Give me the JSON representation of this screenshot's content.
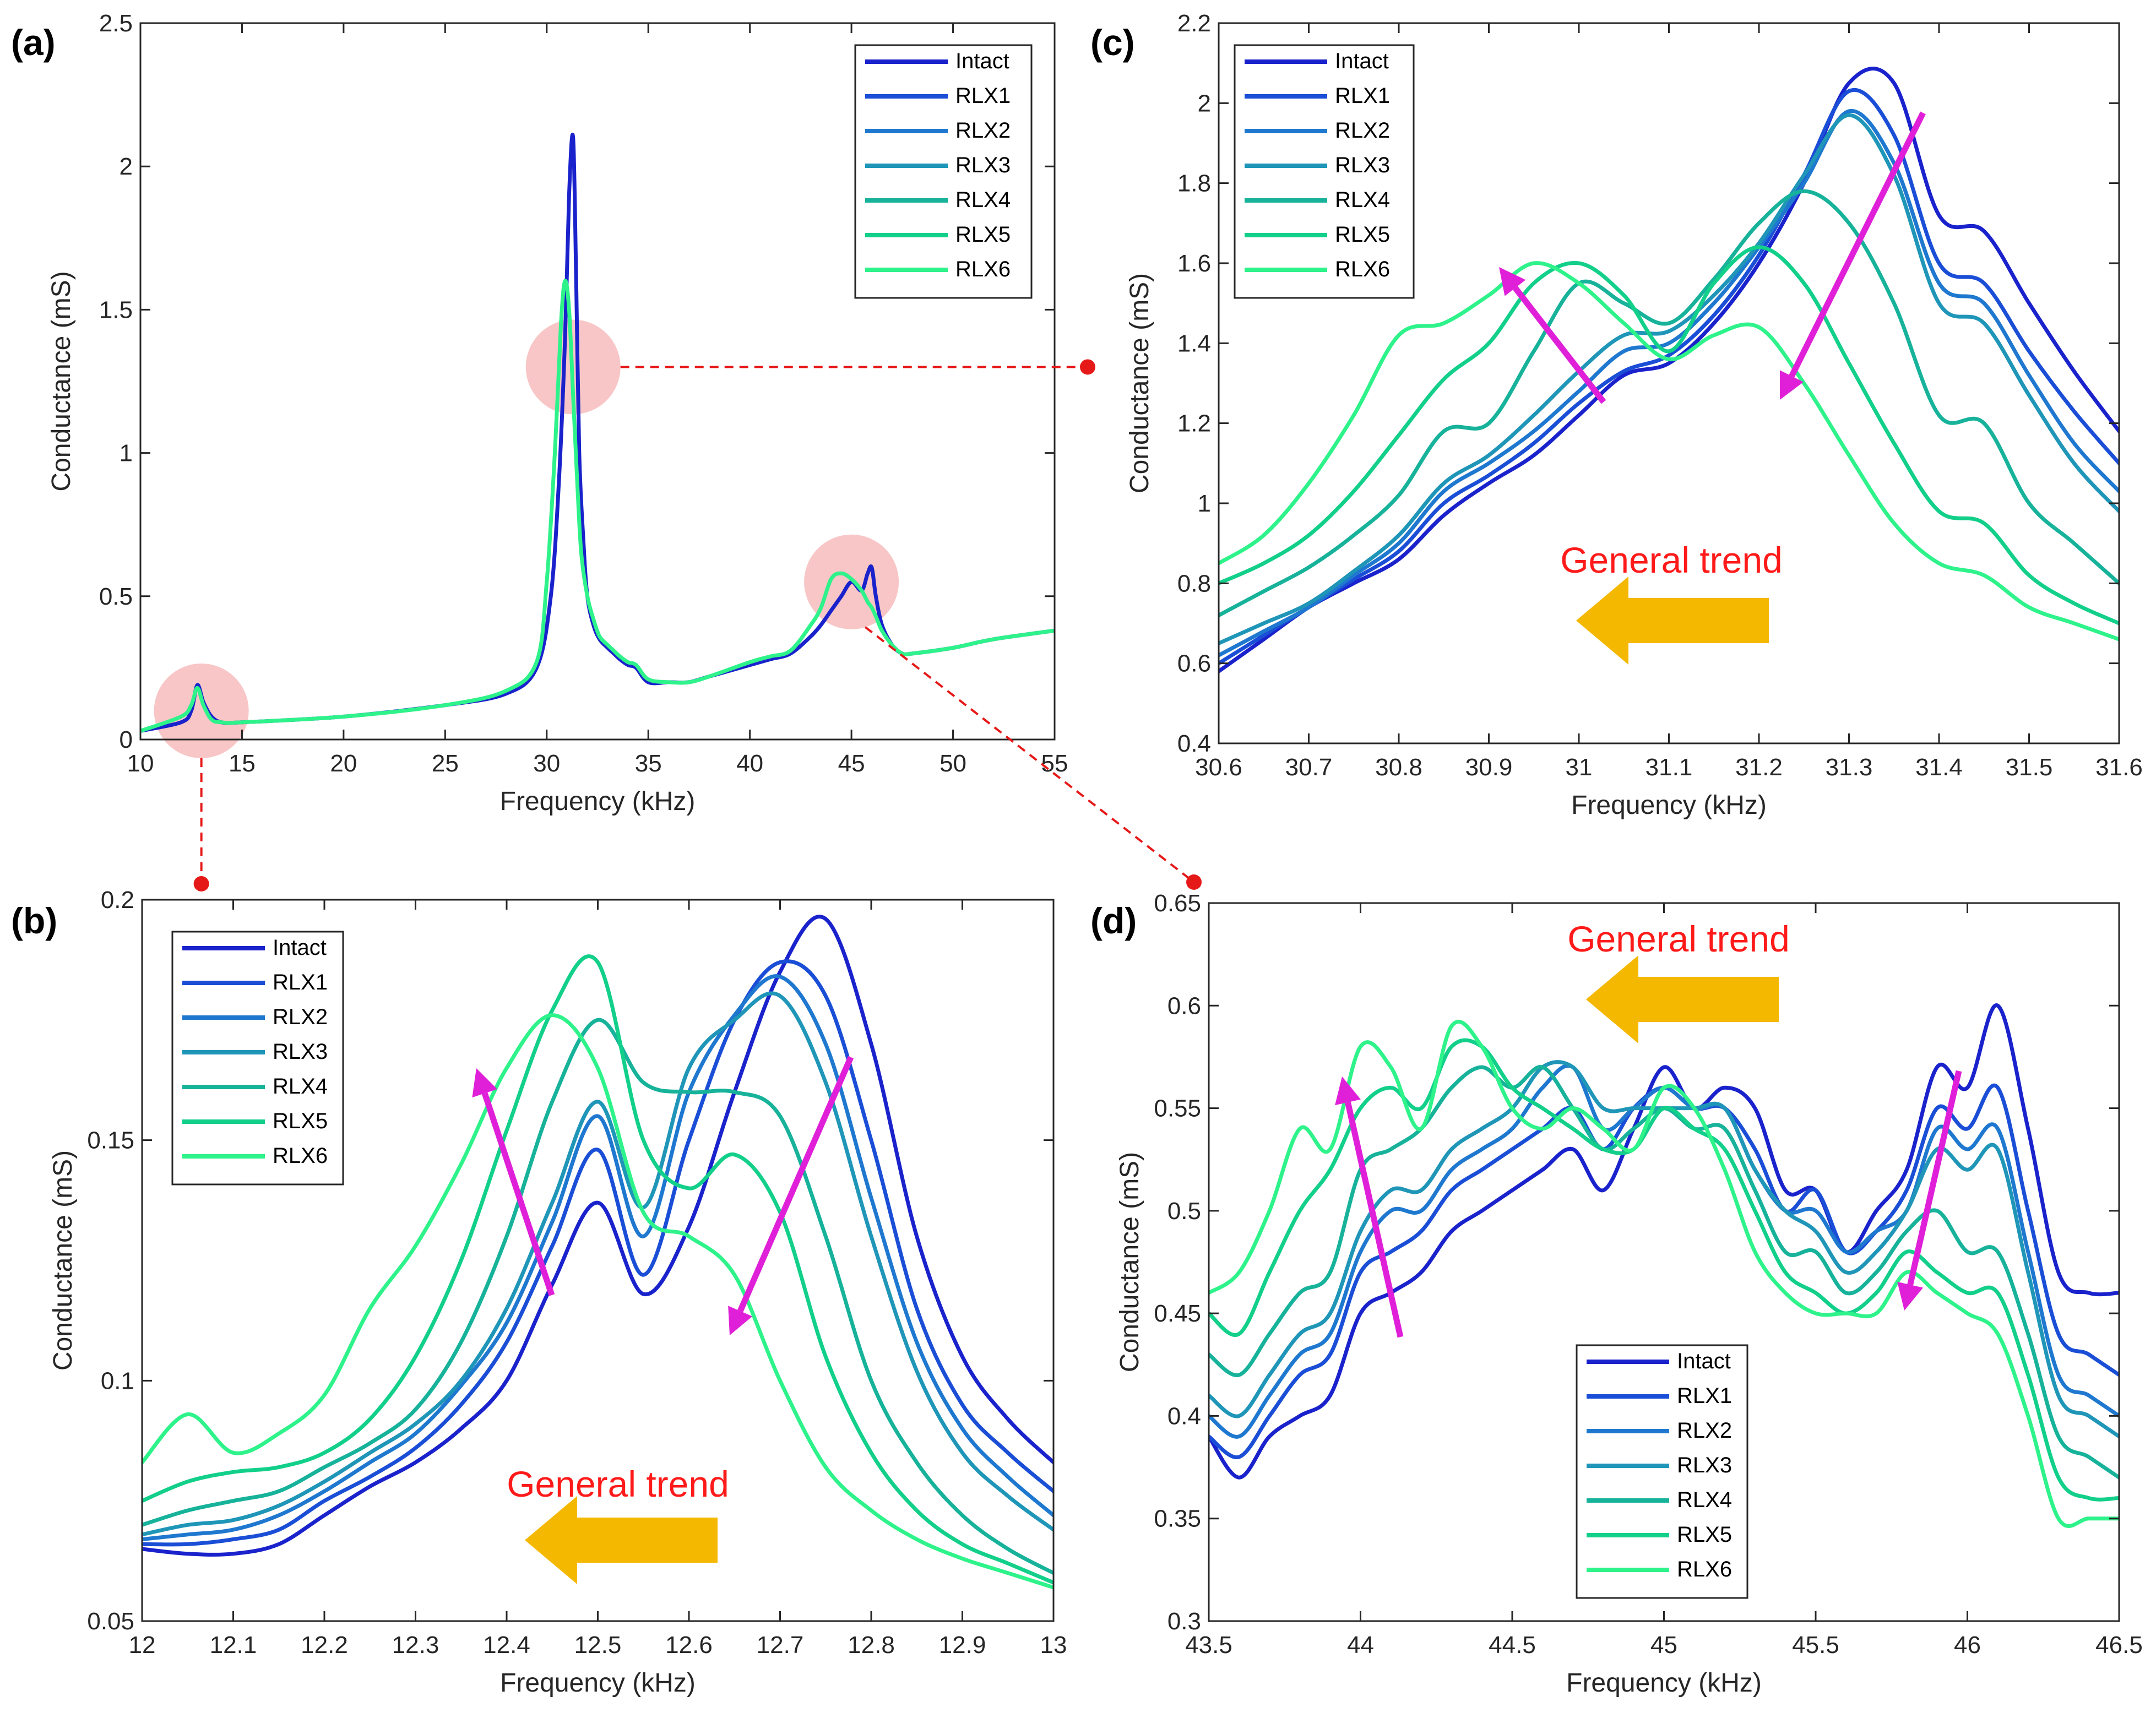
{
  "colors": {
    "series": [
      "#1a22cc",
      "#1a4ed6",
      "#1f78cf",
      "#1f96b8",
      "#17b29a",
      "#12cf8a",
      "#2ef28a"
    ],
    "trend_text": "#ff1a1a",
    "trend_arrow": "#f5b800",
    "shift_arrow": "#e020d8",
    "zoom_marker": "#e61919",
    "zoom_circle": "#f4a0a0"
  },
  "chart_data": [
    {
      "type": "line",
      "panel": "(a)",
      "xlabel": "Frequency (kHz)",
      "ylabel": "Conductance (mS)",
      "xlim": [
        10,
        55
      ],
      "ylim": [
        0,
        2.5
      ],
      "xticks": [
        10,
        15,
        20,
        25,
        30,
        35,
        40,
        45,
        50,
        55
      ],
      "yticks": [
        0,
        0.5,
        1,
        1.5,
        2,
        2.5
      ],
      "ytick_labels": [
        "0",
        "0.5",
        "1",
        "1.5",
        "2",
        "2.5"
      ],
      "legend": [
        "Intact",
        "RLX1",
        "RLX2",
        "RLX3",
        "RLX4",
        "RLX5",
        "RLX6"
      ],
      "legend_position": "top-right",
      "zoom_regions": [
        {
          "x": 13.0,
          "y": 0.1
        },
        {
          "x": 31.3,
          "y": 1.3
        },
        {
          "x": 45.0,
          "y": 0.55
        }
      ],
      "series": [
        {
          "name": "Intact",
          "x": [
            10,
            12,
            12.5,
            12.8,
            13.1,
            13.5,
            14,
            15,
            20,
            25,
            28,
            29.5,
            30.2,
            30.6,
            30.9,
            31.1,
            31.3,
            31.45,
            31.6,
            31.8,
            32.0,
            32.3,
            32.6,
            33.0,
            33.3,
            33.6,
            34.0,
            34.4,
            35,
            36,
            37,
            38,
            40,
            41,
            42,
            43,
            43.5,
            44,
            44.5,
            45,
            45.5,
            45.8,
            46.0,
            46.2,
            46.5,
            47,
            47.5,
            48,
            50,
            52,
            55
          ],
          "values": [
            0.03,
            0.06,
            0.1,
            0.19,
            0.13,
            0.08,
            0.06,
            0.06,
            0.08,
            0.12,
            0.16,
            0.25,
            0.5,
            0.9,
            1.4,
            1.9,
            2.1,
            1.6,
            1.0,
            0.7,
            0.5,
            0.4,
            0.35,
            0.32,
            0.3,
            0.28,
            0.26,
            0.25,
            0.2,
            0.2,
            0.2,
            0.22,
            0.26,
            0.28,
            0.3,
            0.36,
            0.4,
            0.45,
            0.5,
            0.55,
            0.52,
            0.58,
            0.6,
            0.5,
            0.4,
            0.33,
            0.3,
            0.3,
            0.32,
            0.35,
            0.38
          ]
        },
        {
          "name": "RLX6",
          "x": [
            10,
            12,
            12.5,
            12.8,
            13.1,
            13.5,
            14,
            15,
            20,
            25,
            28,
            29.5,
            30.0,
            30.4,
            30.7,
            30.9,
            31.1,
            31.3,
            31.5,
            31.7,
            32.0,
            32.3,
            32.6,
            33.0,
            33.3,
            33.6,
            34.0,
            34.4,
            35,
            36,
            37,
            38,
            40,
            41,
            42,
            43,
            43.5,
            44,
            44.5,
            45,
            45.5,
            45.8,
            46.0,
            46.2,
            46.5,
            47,
            47.5,
            48,
            50,
            52,
            55
          ],
          "values": [
            0.03,
            0.08,
            0.12,
            0.18,
            0.12,
            0.07,
            0.06,
            0.06,
            0.08,
            0.12,
            0.17,
            0.27,
            0.55,
            1.0,
            1.45,
            1.6,
            1.5,
            1.2,
            0.9,
            0.65,
            0.5,
            0.42,
            0.36,
            0.33,
            0.31,
            0.29,
            0.27,
            0.26,
            0.21,
            0.2,
            0.2,
            0.22,
            0.27,
            0.29,
            0.31,
            0.4,
            0.46,
            0.56,
            0.58,
            0.56,
            0.52,
            0.48,
            0.46,
            0.43,
            0.38,
            0.33,
            0.3,
            0.3,
            0.32,
            0.35,
            0.38
          ]
        }
      ]
    },
    {
      "type": "line",
      "panel": "(b)",
      "xlabel": "Frequency (kHz)",
      "ylabel": "Conductance (mS)",
      "xlim": [
        12,
        13
      ],
      "ylim": [
        0.05,
        0.2
      ],
      "xticks": [
        12,
        12.1,
        12.2,
        12.3,
        12.4,
        12.5,
        12.6,
        12.7,
        12.8,
        12.9,
        13
      ],
      "yticks": [
        0.05,
        0.1,
        0.15,
        0.2
      ],
      "ytick_labels": [
        "0.05",
        "0.1",
        "0.15",
        "0.2"
      ],
      "legend": [
        "Intact",
        "RLX1",
        "RLX2",
        "RLX3",
        "RLX4",
        "RLX5",
        "RLX6"
      ],
      "legend_position": "top-left",
      "annotation": "General trend",
      "x": [
        12.0,
        12.05,
        12.1,
        12.15,
        12.2,
        12.25,
        12.3,
        12.35,
        12.4,
        12.45,
        12.5,
        12.55,
        12.6,
        12.65,
        12.7,
        12.75,
        12.8,
        12.85,
        12.9,
        12.95,
        13.0
      ],
      "series": [
        {
          "name": "Intact",
          "values": [
            0.065,
            0.064,
            0.064,
            0.066,
            0.072,
            0.078,
            0.083,
            0.09,
            0.1,
            0.12,
            0.137,
            0.118,
            0.132,
            0.16,
            0.185,
            0.196,
            0.17,
            0.13,
            0.105,
            0.092,
            0.083
          ]
        },
        {
          "name": "RLX1",
          "values": [
            0.066,
            0.066,
            0.067,
            0.069,
            0.075,
            0.08,
            0.086,
            0.095,
            0.108,
            0.128,
            0.148,
            0.122,
            0.15,
            0.175,
            0.187,
            0.18,
            0.15,
            0.115,
            0.095,
            0.085,
            0.077
          ]
        },
        {
          "name": "RLX2",
          "values": [
            0.067,
            0.068,
            0.069,
            0.072,
            0.077,
            0.083,
            0.089,
            0.099,
            0.112,
            0.133,
            0.155,
            0.13,
            0.16,
            0.176,
            0.184,
            0.17,
            0.138,
            0.108,
            0.09,
            0.08,
            0.072
          ]
        },
        {
          "name": "RLX3",
          "values": [
            0.068,
            0.07,
            0.071,
            0.074,
            0.079,
            0.085,
            0.091,
            0.1,
            0.115,
            0.137,
            0.158,
            0.136,
            0.165,
            0.175,
            0.18,
            0.162,
            0.13,
            0.102,
            0.085,
            0.076,
            0.069
          ]
        },
        {
          "name": "RLX4",
          "values": [
            0.07,
            0.073,
            0.075,
            0.077,
            0.082,
            0.087,
            0.094,
            0.108,
            0.13,
            0.158,
            0.175,
            0.162,
            0.16,
            0.16,
            0.155,
            0.13,
            0.1,
            0.083,
            0.072,
            0.065,
            0.06
          ]
        },
        {
          "name": "RLX5",
          "values": [
            0.075,
            0.079,
            0.081,
            0.082,
            0.085,
            0.092,
            0.105,
            0.125,
            0.152,
            0.177,
            0.187,
            0.15,
            0.14,
            0.147,
            0.135,
            0.105,
            0.085,
            0.073,
            0.066,
            0.062,
            0.058
          ]
        },
        {
          "name": "RLX6",
          "values": [
            0.083,
            0.093,
            0.085,
            0.089,
            0.097,
            0.115,
            0.128,
            0.145,
            0.165,
            0.176,
            0.165,
            0.135,
            0.13,
            0.122,
            0.1,
            0.082,
            0.073,
            0.067,
            0.063,
            0.06,
            0.057
          ]
        }
      ]
    },
    {
      "type": "line",
      "panel": "(c)",
      "xlabel": "Frequency (kHz)",
      "ylabel": "Conductance (mS)",
      "xlim": [
        30.6,
        31.6
      ],
      "ylim": [
        0.4,
        2.2
      ],
      "xticks": [
        30.6,
        30.7,
        30.8,
        30.9,
        31,
        31.1,
        31.2,
        31.3,
        31.4,
        31.5,
        31.6
      ],
      "yticks": [
        0.4,
        0.6,
        0.8,
        1,
        1.2,
        1.4,
        1.6,
        1.8,
        2,
        2.2
      ],
      "ytick_labels": [
        "0.4",
        "0.6",
        "0.8",
        "1",
        "1.2",
        "1.4",
        "1.6",
        "1.8",
        "2",
        "2.2"
      ],
      "legend": [
        "Intact",
        "RLX1",
        "RLX2",
        "RLX3",
        "RLX4",
        "RLX5",
        "RLX6"
      ],
      "legend_position": "top-left",
      "annotation": "General trend",
      "x": [
        30.6,
        30.65,
        30.7,
        30.75,
        30.8,
        30.85,
        30.9,
        30.95,
        31.0,
        31.05,
        31.1,
        31.15,
        31.2,
        31.25,
        31.3,
        31.35,
        31.4,
        31.45,
        31.5,
        31.55,
        31.6
      ],
      "series": [
        {
          "name": "Intact",
          "values": [
            0.58,
            0.66,
            0.74,
            0.8,
            0.86,
            0.97,
            1.05,
            1.12,
            1.22,
            1.32,
            1.35,
            1.45,
            1.6,
            1.8,
            2.05,
            2.05,
            1.72,
            1.68,
            1.5,
            1.33,
            1.18
          ]
        },
        {
          "name": "RLX1",
          "values": [
            0.6,
            0.67,
            0.74,
            0.81,
            0.88,
            1.0,
            1.07,
            1.15,
            1.25,
            1.33,
            1.37,
            1.47,
            1.62,
            1.82,
            2.03,
            1.92,
            1.6,
            1.55,
            1.38,
            1.23,
            1.1
          ]
        },
        {
          "name": "RLX2",
          "values": [
            0.62,
            0.68,
            0.74,
            0.82,
            0.9,
            1.03,
            1.1,
            1.18,
            1.28,
            1.38,
            1.4,
            1.5,
            1.64,
            1.8,
            1.98,
            1.85,
            1.55,
            1.5,
            1.32,
            1.15,
            1.03
          ]
        },
        {
          "name": "RLX3",
          "values": [
            0.65,
            0.7,
            0.75,
            0.83,
            0.92,
            1.05,
            1.12,
            1.22,
            1.33,
            1.42,
            1.43,
            1.52,
            1.65,
            1.82,
            1.97,
            1.82,
            1.5,
            1.45,
            1.27,
            1.1,
            0.98
          ]
        },
        {
          "name": "RLX4",
          "values": [
            0.72,
            0.78,
            0.84,
            0.92,
            1.02,
            1.18,
            1.2,
            1.38,
            1.55,
            1.5,
            1.45,
            1.56,
            1.7,
            1.78,
            1.7,
            1.5,
            1.22,
            1.2,
            1.0,
            0.9,
            0.8
          ]
        },
        {
          "name": "RLX5",
          "values": [
            0.8,
            0.85,
            0.92,
            1.03,
            1.17,
            1.31,
            1.4,
            1.55,
            1.6,
            1.52,
            1.38,
            1.55,
            1.64,
            1.55,
            1.35,
            1.15,
            0.98,
            0.95,
            0.82,
            0.75,
            0.7
          ]
        },
        {
          "name": "RLX6",
          "values": [
            0.85,
            0.92,
            1.05,
            1.22,
            1.42,
            1.45,
            1.52,
            1.6,
            1.55,
            1.45,
            1.36,
            1.42,
            1.44,
            1.3,
            1.12,
            0.95,
            0.85,
            0.82,
            0.74,
            0.7,
            0.66
          ]
        }
      ]
    },
    {
      "type": "line",
      "panel": "(d)",
      "xlabel": "Frequency (kHz)",
      "ylabel": "Conductance (mS)",
      "xlim": [
        43.5,
        46.5
      ],
      "ylim": [
        0.3,
        0.65
      ],
      "xticks": [
        43.5,
        44,
        44.5,
        45,
        45.5,
        46,
        46.5
      ],
      "yticks": [
        0.3,
        0.35,
        0.4,
        0.45,
        0.5,
        0.55,
        0.6,
        0.65
      ],
      "ytick_labels": [
        "0.3",
        "0.35",
        "0.4",
        "0.45",
        "0.5",
        "0.55",
        "0.6",
        "0.65"
      ],
      "legend": [
        "Intact",
        "RLX1",
        "RLX2",
        "RLX3",
        "RLX4",
        "RLX5",
        "RLX6"
      ],
      "legend_position": "bottom-center",
      "annotation": "General trend",
      "x": [
        43.5,
        43.6,
        43.7,
        43.8,
        43.9,
        44.0,
        44.1,
        44.2,
        44.3,
        44.4,
        44.5,
        44.6,
        44.7,
        44.8,
        44.9,
        45.0,
        45.1,
        45.2,
        45.3,
        45.4,
        45.5,
        45.6,
        45.7,
        45.8,
        45.9,
        46.0,
        46.1,
        46.2,
        46.3,
        46.4,
        46.5
      ],
      "series": [
        {
          "name": "Intact",
          "values": [
            0.39,
            0.37,
            0.39,
            0.4,
            0.41,
            0.45,
            0.46,
            0.47,
            0.49,
            0.5,
            0.51,
            0.52,
            0.53,
            0.51,
            0.54,
            0.57,
            0.55,
            0.56,
            0.55,
            0.51,
            0.51,
            0.48,
            0.5,
            0.52,
            0.57,
            0.56,
            0.6,
            0.54,
            0.47,
            0.46,
            0.46
          ]
        },
        {
          "name": "RLX1",
          "values": [
            0.39,
            0.38,
            0.4,
            0.42,
            0.43,
            0.47,
            0.48,
            0.49,
            0.51,
            0.52,
            0.53,
            0.54,
            0.55,
            0.53,
            0.55,
            0.56,
            0.55,
            0.55,
            0.53,
            0.5,
            0.51,
            0.48,
            0.49,
            0.51,
            0.55,
            0.54,
            0.56,
            0.5,
            0.44,
            0.43,
            0.42
          ]
        },
        {
          "name": "RLX2",
          "values": [
            0.4,
            0.39,
            0.41,
            0.43,
            0.44,
            0.48,
            0.5,
            0.5,
            0.52,
            0.53,
            0.54,
            0.56,
            0.57,
            0.54,
            0.55,
            0.56,
            0.55,
            0.55,
            0.52,
            0.5,
            0.5,
            0.48,
            0.49,
            0.5,
            0.54,
            0.53,
            0.54,
            0.48,
            0.42,
            0.41,
            0.4
          ]
        },
        {
          "name": "RLX3",
          "values": [
            0.41,
            0.4,
            0.42,
            0.44,
            0.45,
            0.49,
            0.51,
            0.51,
            0.53,
            0.54,
            0.55,
            0.57,
            0.57,
            0.55,
            0.55,
            0.55,
            0.55,
            0.55,
            0.52,
            0.5,
            0.49,
            0.47,
            0.48,
            0.5,
            0.53,
            0.52,
            0.53,
            0.47,
            0.41,
            0.4,
            0.39
          ]
        },
        {
          "name": "RLX4",
          "values": [
            0.43,
            0.42,
            0.44,
            0.46,
            0.47,
            0.52,
            0.53,
            0.54,
            0.56,
            0.57,
            0.56,
            0.57,
            0.55,
            0.53,
            0.54,
            0.55,
            0.54,
            0.54,
            0.51,
            0.48,
            0.48,
            0.46,
            0.47,
            0.49,
            0.5,
            0.48,
            0.48,
            0.44,
            0.39,
            0.38,
            0.37
          ]
        },
        {
          "name": "RLX5",
          "values": [
            0.45,
            0.44,
            0.47,
            0.5,
            0.52,
            0.55,
            0.56,
            0.55,
            0.58,
            0.58,
            0.56,
            0.55,
            0.54,
            0.53,
            0.53,
            0.55,
            0.54,
            0.53,
            0.5,
            0.47,
            0.46,
            0.45,
            0.46,
            0.48,
            0.47,
            0.46,
            0.46,
            0.42,
            0.37,
            0.36,
            0.36
          ]
        },
        {
          "name": "RLX6",
          "values": [
            0.46,
            0.47,
            0.5,
            0.54,
            0.53,
            0.58,
            0.57,
            0.54,
            0.59,
            0.58,
            0.55,
            0.54,
            0.55,
            0.54,
            0.53,
            0.56,
            0.55,
            0.52,
            0.48,
            0.46,
            0.45,
            0.45,
            0.45,
            0.47,
            0.46,
            0.45,
            0.44,
            0.4,
            0.35,
            0.35,
            0.35
          ]
        }
      ]
    }
  ]
}
